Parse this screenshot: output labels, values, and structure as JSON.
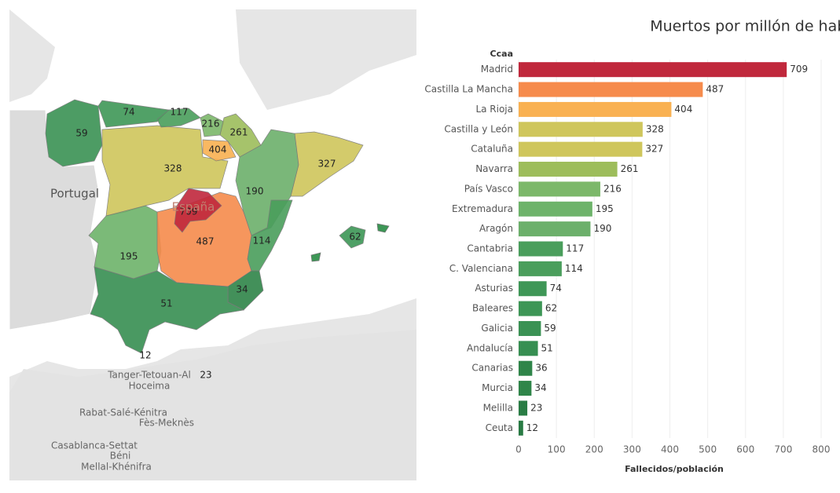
{
  "chart_data": {
    "type": "bar",
    "orientation": "horizontal",
    "title": "Muertos por millón de habitantes",
    "category_axis_title": "Ccaa",
    "x_axis_title": "Fallecidos/población",
    "categories": [
      "Madrid",
      "Castilla La Mancha",
      "La Rioja",
      "Castilla y León",
      "Cataluña",
      "Navarra",
      "País Vasco",
      "Extremadura",
      "Aragón",
      "Cantabria",
      "C. Valenciana",
      "Asturias",
      "Baleares",
      "Galicia",
      "Andalucía",
      "Canarias",
      "Murcia",
      "Melilla",
      "Ceuta"
    ],
    "values": [
      709,
      487,
      404,
      328,
      327,
      261,
      216,
      195,
      190,
      117,
      114,
      74,
      62,
      59,
      51,
      36,
      34,
      23,
      12
    ],
    "colors": [
      "#c0283c",
      "#f68b4c",
      "#f9b152",
      "#cfc65c",
      "#cfc65c",
      "#9dbd5b",
      "#7cb86a",
      "#6db36a",
      "#6cb06b",
      "#4a9e5c",
      "#4a9e5c",
      "#3f9757",
      "#3d9656",
      "#3a9254",
      "#378f52",
      "#2f8549",
      "#2f8549",
      "#2a7d45",
      "#287a43"
    ],
    "xlim": [
      0,
      800
    ],
    "xticks": [
      0,
      100,
      200,
      300,
      400,
      500,
      600,
      700,
      800
    ],
    "grid": true
  },
  "map": {
    "places": [
      "Portugal",
      "España",
      "Tanger-Tetouan-Al",
      "Hoceima",
      "Rabat-Salé-Kénitra",
      "Fès-Meknès",
      "Casablanca-Settat",
      "Béni",
      "Mellal-Khénifra"
    ]
  }
}
